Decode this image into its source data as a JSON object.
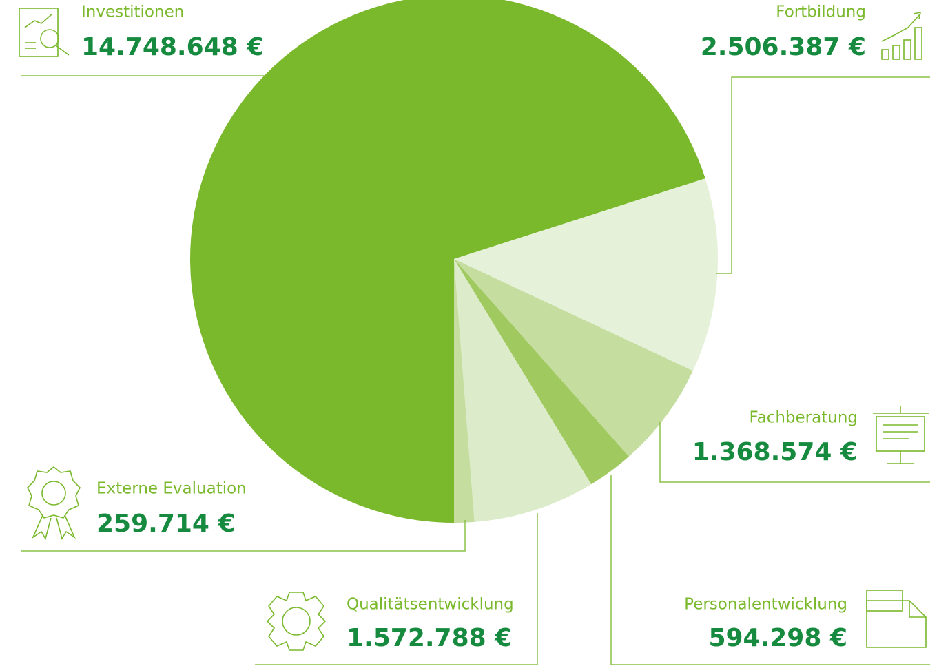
{
  "chart_data": {
    "type": "pie",
    "categories": [
      "Investitionen",
      "Fortbildung",
      "Fachberatung",
      "Personalentwicklung",
      "Qualitätsentwicklung",
      "Externe Evaluation"
    ],
    "values": [
      14748648,
      2506387,
      1368574,
      594298,
      1572788,
      259714
    ],
    "value_labels": [
      "14.748.648 €",
      "2.506.387 €",
      "1.368.574 €",
      "594.298 €",
      "1.572.788 €",
      "259.714 €"
    ],
    "colors": [
      "#7ab82c",
      "#e6f1da",
      "#c5dd9f",
      "#a0c95f",
      "#dcebc9",
      "#c5dd9f"
    ]
  }
}
